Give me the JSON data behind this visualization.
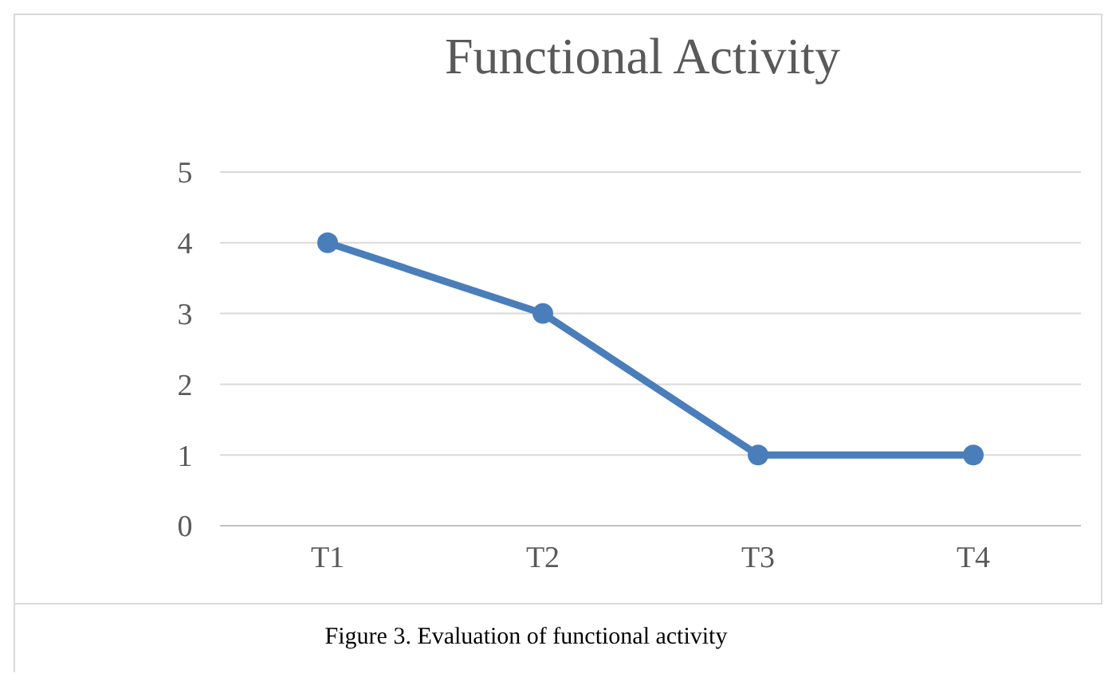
{
  "chart_data": {
    "type": "line",
    "title": "Functional Activity",
    "categories": [
      "T1",
      "T2",
      "T3",
      "T4"
    ],
    "series": [
      {
        "color": "#4a7ebb",
        "values": [
          4,
          3,
          1,
          1
        ]
      }
    ],
    "ylim": [
      0,
      5
    ],
    "yticks": [
      0,
      1,
      2,
      3,
      4,
      5
    ],
    "grid": "y",
    "marker": "circle",
    "line_style": "solid",
    "annotations": [
      "Figure 3. Evaluation of functional activity"
    ]
  }
}
